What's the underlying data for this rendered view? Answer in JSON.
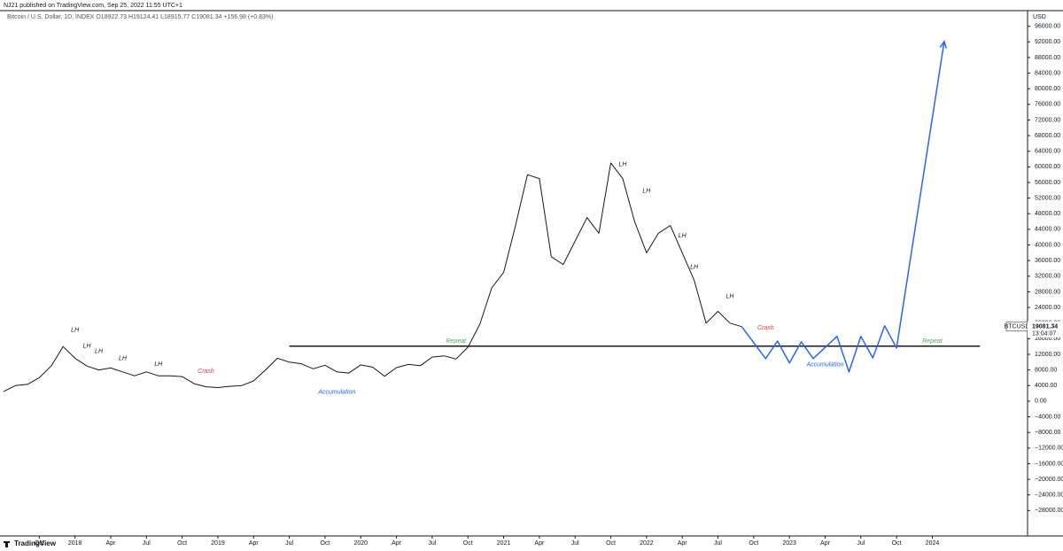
{
  "chart_data": {
    "type": "line",
    "header": "NJ21 published on TradingView.com, Sep 25, 2022 11:55 UTC+1",
    "title": "Bitcoin / U.S. Dollar, 1D, INDEX  O18922.73  H19124.41  L18915.77  C19081.34  +156.98 (+0.83%)",
    "y_unit": "USD",
    "footer": "TradingView",
    "xlim": [
      "2017-07",
      "2024-09"
    ],
    "ylim": [
      -34500,
      100000
    ],
    "xticks": [
      {
        "value": "2017-10",
        "label": "Oct"
      },
      {
        "value": "2018-01",
        "label": "2018"
      },
      {
        "value": "2018-04",
        "label": "Apr"
      },
      {
        "value": "2018-07",
        "label": "Jul"
      },
      {
        "value": "2018-10",
        "label": "Oct"
      },
      {
        "value": "2019-01",
        "label": "2019"
      },
      {
        "value": "2019-04",
        "label": "Apr"
      },
      {
        "value": "2019-07",
        "label": "Jul"
      },
      {
        "value": "2019-10",
        "label": "Oct"
      },
      {
        "value": "2020-01",
        "label": "2020"
      },
      {
        "value": "2020-04",
        "label": "Apr"
      },
      {
        "value": "2020-07",
        "label": "Jul"
      },
      {
        "value": "2020-10",
        "label": "Oct"
      },
      {
        "value": "2021-01",
        "label": "2021"
      },
      {
        "value": "2021-04",
        "label": "Apr"
      },
      {
        "value": "2021-07",
        "label": "Jul"
      },
      {
        "value": "2021-10",
        "label": "Oct"
      },
      {
        "value": "2022-01",
        "label": "2022"
      },
      {
        "value": "2022-04",
        "label": "Apr"
      },
      {
        "value": "2022-07",
        "label": "Jul"
      },
      {
        "value": "2022-10",
        "label": "Oct"
      },
      {
        "value": "2023-01",
        "label": "2023"
      },
      {
        "value": "2023-04",
        "label": "Apr"
      },
      {
        "value": "2023-07",
        "label": "Jul"
      },
      {
        "value": "2023-10",
        "label": "Oct"
      },
      {
        "value": "2024-01",
        "label": "2024"
      }
    ],
    "yticks": [
      {
        "value": 96000,
        "label": "96000.00"
      },
      {
        "value": 92000,
        "label": "92000.00"
      },
      {
        "value": 88000,
        "label": "88000.00"
      },
      {
        "value": 84000,
        "label": "84000.00"
      },
      {
        "value": 80000,
        "label": "80000.00"
      },
      {
        "value": 76000,
        "label": "76000.00"
      },
      {
        "value": 72000,
        "label": "72000.00"
      },
      {
        "value": 68000,
        "label": "68000.00"
      },
      {
        "value": 64000,
        "label": "64000.00"
      },
      {
        "value": 60000,
        "label": "60000.00"
      },
      {
        "value": 56000,
        "label": "56000.00"
      },
      {
        "value": 52000,
        "label": "52000.00"
      },
      {
        "value": 48000,
        "label": "48000.00"
      },
      {
        "value": 44000,
        "label": "44000.00"
      },
      {
        "value": 40000,
        "label": "40000.00"
      },
      {
        "value": 36000,
        "label": "36000.00"
      },
      {
        "value": 32000,
        "label": "32000.00"
      },
      {
        "value": 28000,
        "label": "28000.00"
      },
      {
        "value": 24000,
        "label": "24000.00"
      },
      {
        "value": 20000,
        "label": "20000.00"
      },
      {
        "value": 16000,
        "label": "16000.00"
      },
      {
        "value": 12000,
        "label": "12000.00"
      },
      {
        "value": 8000,
        "label": "8000.00"
      },
      {
        "value": 4000,
        "label": "4000.00"
      },
      {
        "value": 0,
        "label": "0.00"
      },
      {
        "value": -4000,
        "label": "−4000.00"
      },
      {
        "value": -8000,
        "label": "−8000.00"
      },
      {
        "value": -12000,
        "label": "−12000.00"
      },
      {
        "value": -16000,
        "label": "−16000.00"
      },
      {
        "value": -20000,
        "label": "−20000.00"
      },
      {
        "value": -24000,
        "label": "−24000.00"
      },
      {
        "value": -28000,
        "label": "−28000.00"
      }
    ],
    "series": [
      {
        "name": "BTCUSD",
        "color": "#131722",
        "x": [
          "2017-07",
          "2017-08",
          "2017-09",
          "2017-10",
          "2017-11",
          "2017-12",
          "2018-01",
          "2018-02",
          "2018-03",
          "2018-04",
          "2018-05",
          "2018-06",
          "2018-07",
          "2018-08",
          "2018-09",
          "2018-10",
          "2018-11",
          "2018-12",
          "2019-01",
          "2019-02",
          "2019-03",
          "2019-04",
          "2019-05",
          "2019-06",
          "2019-07",
          "2019-08",
          "2019-09",
          "2019-10",
          "2019-11",
          "2019-12",
          "2020-01",
          "2020-02",
          "2020-03",
          "2020-04",
          "2020-05",
          "2020-06",
          "2020-07",
          "2020-08",
          "2020-09",
          "2020-10",
          "2020-11",
          "2020-12",
          "2021-01",
          "2021-02",
          "2021-03",
          "2021-04",
          "2021-05",
          "2021-06",
          "2021-07",
          "2021-08",
          "2021-09",
          "2021-10",
          "2021-11",
          "2021-12",
          "2022-01",
          "2022-02",
          "2022-03",
          "2022-04",
          "2022-05",
          "2022-06",
          "2022-07",
          "2022-08",
          "2022-09"
        ],
        "values": [
          2500,
          4000,
          4300,
          6000,
          9000,
          14000,
          11000,
          9000,
          8000,
          8500,
          7500,
          6500,
          7500,
          6500,
          6500,
          6300,
          4500,
          3700,
          3500,
          3800,
          4000,
          5200,
          8000,
          11000,
          10000,
          9600,
          8300,
          9200,
          7500,
          7200,
          9300,
          8700,
          6400,
          8600,
          9400,
          9100,
          11300,
          11600,
          10800,
          13800,
          19700,
          29000,
          33000,
          45000,
          58000,
          57000,
          37000,
          35000,
          41000,
          47000,
          43000,
          61000,
          57000,
          46000,
          38000,
          43000,
          45000,
          38000,
          31000,
          20000,
          23000,
          20000,
          19081.34
        ]
      },
      {
        "color": "#2962ff",
        "x": [
          "2022-09",
          "2022-11",
          "2022-12",
          "2023-01",
          "2023-02",
          "2023-03",
          "2023-05",
          "2023-06",
          "2023-07",
          "2023-08",
          "2023-09",
          "2023-10",
          "2024-02"
        ],
        "values": [
          19081.34,
          10900,
          15400,
          9800,
          15200,
          10900,
          16600,
          7500,
          16600,
          11100,
          19300,
          13600,
          92100
        ]
      }
    ],
    "support_level": {
      "value": 14100,
      "x": [
        "2019-07",
        "2024-05"
      ],
      "color": "#131722"
    },
    "last_price": {
      "label": "BTCUSD",
      "value": 19081.34,
      "countdown": "13:04:07"
    },
    "annotations": [
      {
        "text": "LH",
        "x": "2018-01",
        "y": 18200,
        "color": "#131722"
      },
      {
        "text": "LH",
        "x": "2018-02",
        "y": 14100,
        "color": "#131722"
      },
      {
        "text": "LH",
        "x": "2018-03",
        "y": 12700,
        "color": "#131722"
      },
      {
        "text": "LH",
        "x": "2018-05",
        "y": 10900,
        "color": "#131722"
      },
      {
        "text": "LH",
        "x": "2018-08",
        "y": 9500,
        "color": "#131722"
      },
      {
        "text": "Crash",
        "x": "2018-12",
        "y": 7700,
        "color": "#f23645"
      },
      {
        "text": "Accumulation",
        "x": "2019-11",
        "y": 2300,
        "color": "#2962ff"
      },
      {
        "text": "Repeat",
        "x": "2020-09",
        "y": 15400,
        "color": "#4caf50"
      },
      {
        "text": "LH",
        "x": "2021-11",
        "y": 60600,
        "color": "#131722"
      },
      {
        "text": "LH",
        "x": "2022-01",
        "y": 53800,
        "color": "#131722"
      },
      {
        "text": "LH",
        "x": "2022-04",
        "y": 42400,
        "color": "#131722"
      },
      {
        "text": "LH",
        "x": "2022-05",
        "y": 34300,
        "color": "#131722"
      },
      {
        "text": "LH",
        "x": "2022-08",
        "y": 26800,
        "color": "#131722"
      },
      {
        "text": "Crash",
        "x": "2022-11",
        "y": 18800,
        "color": "#f23645"
      },
      {
        "text": "Accumulation",
        "x": "2023-04",
        "y": 9300,
        "color": "#2962ff"
      },
      {
        "text": "Repeat",
        "x": "2024-01",
        "y": 15400,
        "color": "#4caf50"
      }
    ]
  }
}
